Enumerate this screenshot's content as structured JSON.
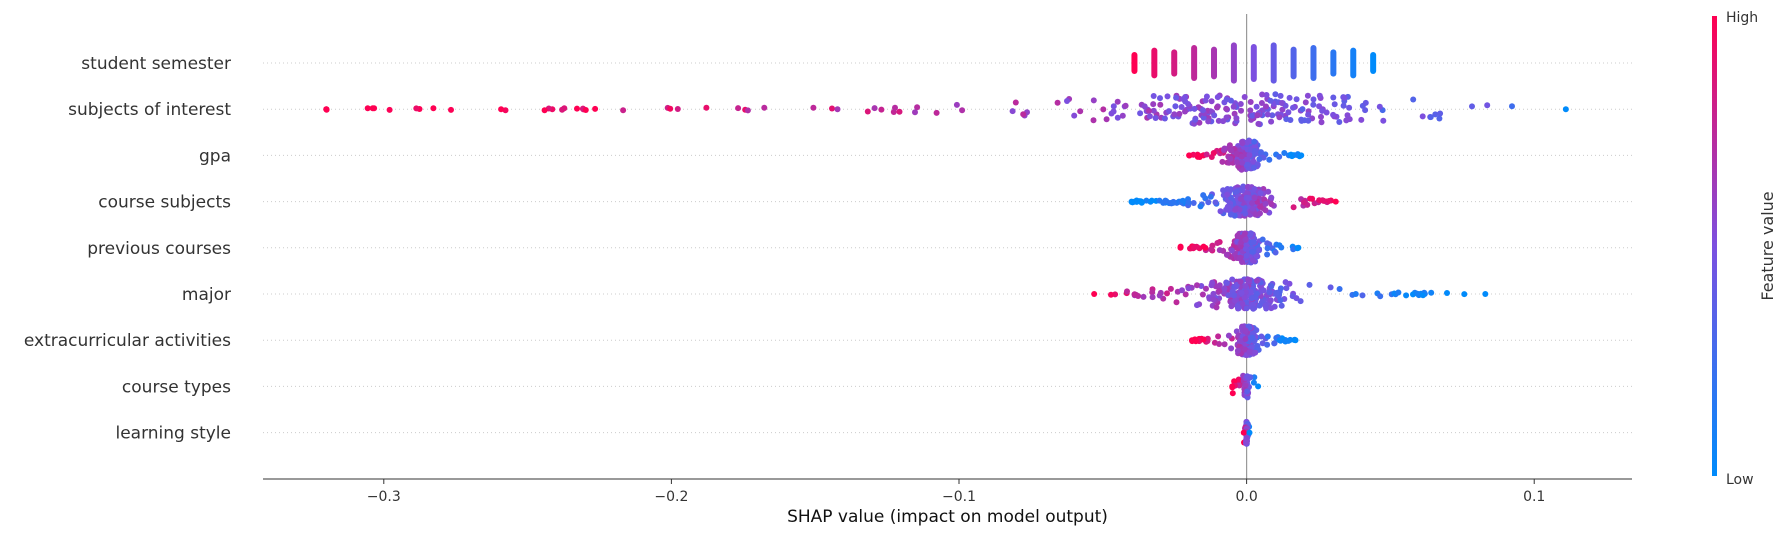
{
  "chart_data": {
    "type": "scatter",
    "subtype": "shap-beeswarm",
    "xlabel": "SHAP value (impact on model output)",
    "x_ticks": [
      "−0.3",
      "−0.2",
      "−0.1",
      "0.0",
      "0.1"
    ],
    "x_tick_values": [
      -0.3,
      -0.2,
      -0.1,
      0.0,
      0.1
    ],
    "xlim": [
      -0.342,
      0.134
    ],
    "features": [
      {
        "name": "student semester",
        "min": -0.039,
        "max": 0.044,
        "style": "discrete"
      },
      {
        "name": "subjects of interest",
        "min": -0.32,
        "max": 0.111,
        "style": "spread"
      },
      {
        "name": "gpa",
        "min": -0.02,
        "max": 0.019,
        "style": "dense"
      },
      {
        "name": "course subjects",
        "min": -0.04,
        "max": 0.031,
        "style": "spread"
      },
      {
        "name": "previous courses",
        "min": -0.023,
        "max": 0.018,
        "style": "compact"
      },
      {
        "name": "major",
        "min": -0.053,
        "max": 0.083,
        "style": "spread"
      },
      {
        "name": "extracurricular activities",
        "min": -0.019,
        "max": 0.017,
        "style": "compact"
      },
      {
        "name": "course types",
        "min": -0.005,
        "max": 0.004,
        "style": "narrow"
      },
      {
        "name": "learning style",
        "min": -0.001,
        "max": 0.001,
        "style": "narrow"
      }
    ],
    "colorbar": {
      "label": "Feature value",
      "high_label": "High",
      "low_label": "Low"
    },
    "colors": {
      "high": "#ff0052",
      "mid": "#7c50e0",
      "low": "#008bfb",
      "axis": "#333333",
      "grid": "#cccccc",
      "zero_line": "#999999"
    }
  }
}
